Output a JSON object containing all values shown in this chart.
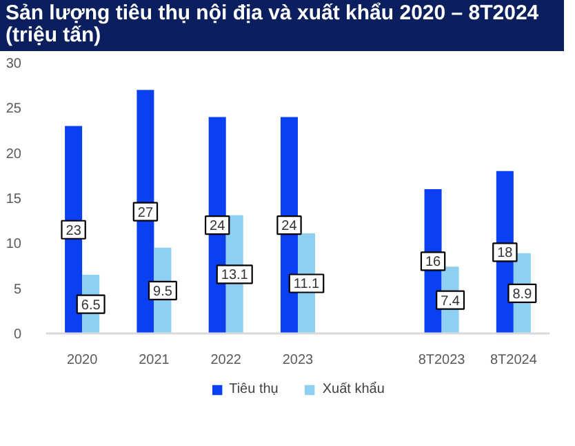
{
  "chart_data": {
    "type": "bar",
    "title": "Sản lượng tiêu thụ nội địa và xuất khẩu 2020 – 8T2024 (triệu tấn)",
    "categories": [
      "2020",
      "2021",
      "2022",
      "2023",
      null,
      "8T2023",
      "8T2024"
    ],
    "series": [
      {
        "name": "Tiêu thụ",
        "color": "#0a40f0",
        "values": [
          23,
          27,
          24,
          24,
          null,
          16,
          18
        ]
      },
      {
        "name": "Xuất khẩu",
        "color": "#8fd0f2",
        "values": [
          6.5,
          9.5,
          13.1,
          11.1,
          null,
          7.4,
          8.9
        ]
      }
    ],
    "ylim": [
      0,
      30
    ],
    "yticks": [
      0,
      5,
      10,
      15,
      20,
      25,
      30
    ],
    "grid": false,
    "legend": "bottom",
    "data_labels": true
  }
}
